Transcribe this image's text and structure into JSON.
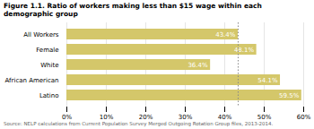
{
  "chart_data": {
    "type": "bar",
    "orientation": "horizontal",
    "title": "Figure 1.1. Ratio of workers making less than $15 wage within each demographic group",
    "caption": "Source: NELP calculations from Current Population Survey Merged Outgoing Rotation Group files, 2013-2014.",
    "categories": [
      "All Workers",
      "Female",
      "White",
      "African American",
      "Latino"
    ],
    "values": [
      43.4,
      48.1,
      36.4,
      54.1,
      59.5
    ],
    "value_labels": [
      "43.4%",
      "48.1%",
      "36.4%",
      "54.1%",
      "59.5%"
    ],
    "data_labels": true,
    "color": "#d4c76a",
    "xlim": [
      0,
      60
    ],
    "xticks": [
      {
        "value": 0,
        "label": "0%"
      },
      {
        "value": 10,
        "label": "10%"
      },
      {
        "value": 20,
        "label": "20%"
      },
      {
        "value": 30,
        "label": "30%"
      },
      {
        "value": 40,
        "label": "40%"
      },
      {
        "value": 50,
        "label": "50%"
      },
      {
        "value": 60,
        "label": "60%"
      }
    ],
    "reference_line_x": 43.4,
    "grid": true
  }
}
